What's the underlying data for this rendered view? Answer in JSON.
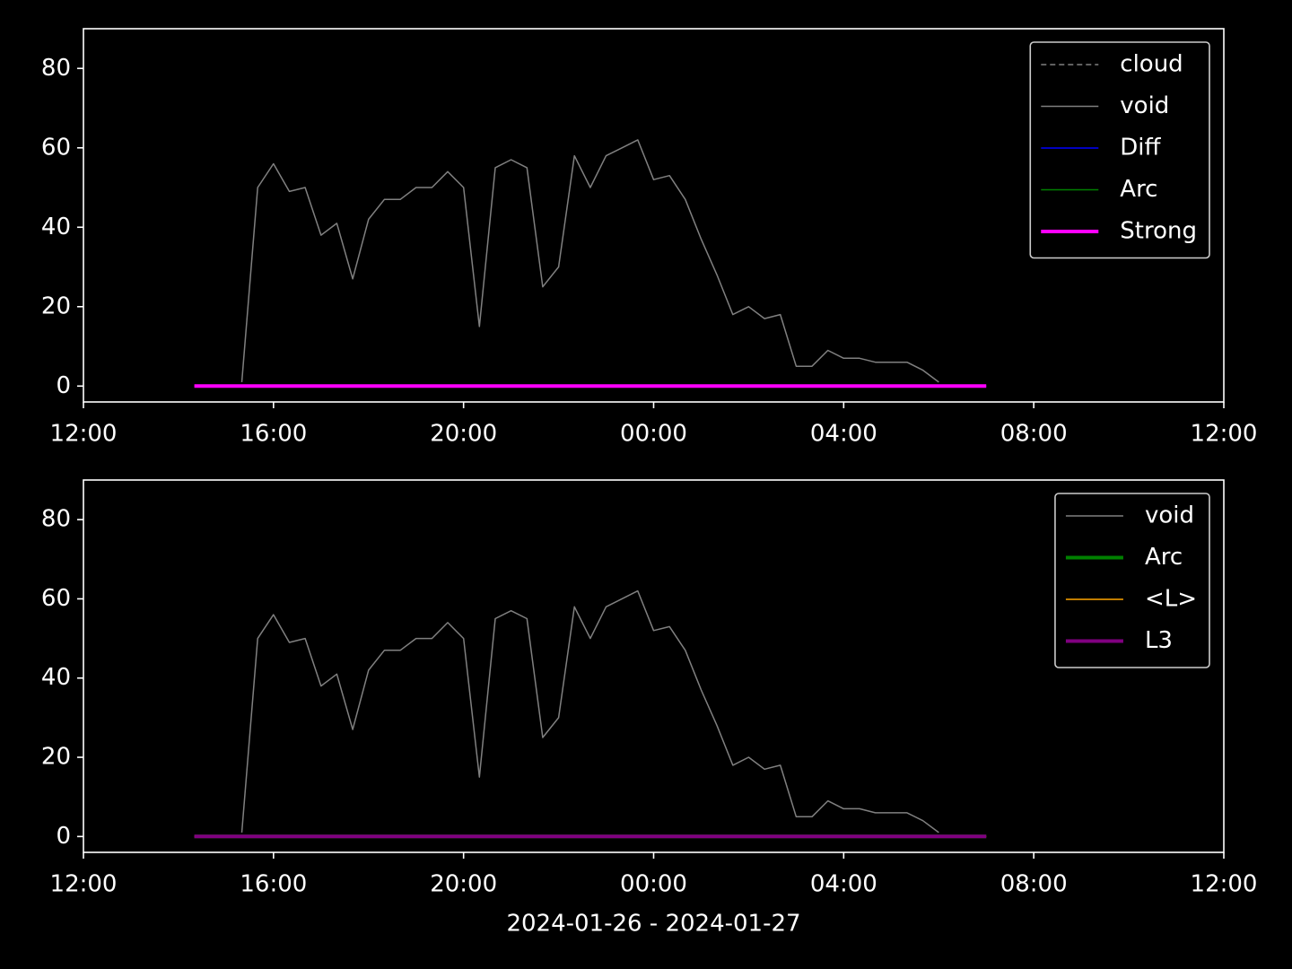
{
  "chart_data": [
    {
      "type": "line",
      "x": [
        140,
        160,
        180,
        200,
        220,
        240,
        260,
        280,
        300,
        320,
        340,
        360,
        380,
        400,
        420,
        440,
        460,
        480,
        500,
        520,
        540,
        560,
        580,
        600,
        620,
        640,
        660,
        680,
        700,
        720,
        740,
        760,
        780,
        800,
        820,
        840,
        860,
        880,
        900,
        920,
        940,
        960,
        980,
        1000,
        1020,
        1040,
        1060,
        1080,
        1100,
        1120,
        1140
      ],
      "series": [
        {
          "name": "cloud",
          "color": "#808080",
          "linewidth": 1.5,
          "linestyle": "dashed",
          "values": [
            0,
            0,
            0,
            0,
            0,
            0,
            0,
            0,
            0,
            0,
            0,
            0,
            0,
            0,
            0,
            0,
            0,
            0,
            0,
            0,
            0,
            0,
            0,
            0,
            0,
            0,
            0,
            0,
            0,
            0,
            0,
            0,
            0,
            0,
            0,
            0,
            0,
            0,
            0,
            0,
            0,
            0,
            0,
            0,
            0,
            0,
            0,
            0,
            0,
            0,
            0
          ]
        },
        {
          "name": "void",
          "color": "#808080",
          "linewidth": 1.5,
          "linestyle": "solid",
          "values": [
            null,
            null,
            null,
            1,
            50,
            56,
            49,
            50,
            38,
            41,
            27,
            42,
            47,
            47,
            50,
            50,
            54,
            50,
            15,
            55,
            57,
            55,
            25,
            30,
            58,
            50,
            58,
            60,
            62,
            52,
            53,
            47,
            37,
            28,
            18,
            20,
            17,
            18,
            5,
            5,
            9,
            7,
            7,
            6,
            6,
            6,
            4,
            1,
            null,
            null,
            null
          ]
        },
        {
          "name": "Diff",
          "color": "#0000ff",
          "linewidth": 1.5,
          "linestyle": "solid",
          "values": [
            0,
            0,
            0,
            0,
            0,
            0,
            0,
            0,
            0,
            0,
            0,
            0,
            0,
            0,
            0,
            0,
            0,
            0,
            0,
            0,
            0,
            0,
            0,
            0,
            0,
            0,
            0,
            0,
            0,
            0,
            0,
            0,
            0,
            0,
            0,
            0,
            0,
            0,
            0,
            0,
            0,
            0,
            0,
            0,
            0,
            0,
            0,
            0,
            0,
            0,
            0
          ]
        },
        {
          "name": "Arc",
          "color": "#008000",
          "linewidth": 1.5,
          "linestyle": "solid",
          "values": [
            0,
            0,
            0,
            0,
            0,
            0,
            0,
            0,
            0,
            0,
            0,
            0,
            0,
            0,
            0,
            0,
            0,
            0,
            0,
            0,
            0,
            0,
            0,
            0,
            0,
            0,
            0,
            0,
            0,
            0,
            0,
            0,
            0,
            0,
            0,
            0,
            0,
            0,
            0,
            0,
            0,
            0,
            0,
            0,
            0,
            0,
            0,
            0,
            0,
            0,
            0
          ]
        },
        {
          "name": "Strong",
          "color": "#ff00ff",
          "linewidth": 4,
          "linestyle": "solid",
          "values": [
            0,
            0,
            0,
            0,
            0,
            0,
            0,
            0,
            0,
            0,
            0,
            0,
            0,
            0,
            0,
            0,
            0,
            0,
            0,
            0,
            0,
            0,
            0,
            0,
            0,
            0,
            0,
            0,
            0,
            0,
            0,
            0,
            0,
            0,
            0,
            0,
            0,
            0,
            0,
            0,
            0,
            0,
            0,
            0,
            0,
            0,
            0,
            0,
            0,
            0,
            0
          ]
        }
      ],
      "xlim": [
        0,
        1440
      ],
      "xticks": [
        {
          "value": 0,
          "label": "12:00"
        },
        {
          "value": 240,
          "label": "16:00"
        },
        {
          "value": 480,
          "label": "20:00"
        },
        {
          "value": 720,
          "label": "00:00"
        },
        {
          "value": 960,
          "label": "04:00"
        },
        {
          "value": 1200,
          "label": "08:00"
        },
        {
          "value": 1440,
          "label": "12:00"
        }
      ],
      "ylim": [
        -4,
        90
      ],
      "yticks": [
        0,
        20,
        40,
        60,
        80
      ],
      "legend": "upper right"
    },
    {
      "type": "line",
      "x": [
        140,
        160,
        180,
        200,
        220,
        240,
        260,
        280,
        300,
        320,
        340,
        360,
        380,
        400,
        420,
        440,
        460,
        480,
        500,
        520,
        540,
        560,
        580,
        600,
        620,
        640,
        660,
        680,
        700,
        720,
        740,
        760,
        780,
        800,
        820,
        840,
        860,
        880,
        900,
        920,
        940,
        960,
        980,
        1000,
        1020,
        1040,
        1060,
        1080,
        1100,
        1120,
        1140
      ],
      "series": [
        {
          "name": "void",
          "color": "#808080",
          "linewidth": 1.5,
          "linestyle": "solid",
          "values": [
            null,
            null,
            null,
            1,
            50,
            56,
            49,
            50,
            38,
            41,
            27,
            42,
            47,
            47,
            50,
            50,
            54,
            50,
            15,
            55,
            57,
            55,
            25,
            30,
            58,
            50,
            58,
            60,
            62,
            52,
            53,
            47,
            37,
            28,
            18,
            20,
            17,
            18,
            5,
            5,
            9,
            7,
            7,
            6,
            6,
            6,
            4,
            1,
            null,
            null,
            null
          ]
        },
        {
          "name": "Arc",
          "color": "#008000",
          "linewidth": 4,
          "linestyle": "solid",
          "values": [
            0,
            0,
            0,
            0,
            0,
            0,
            0,
            0,
            0,
            0,
            0,
            0,
            0,
            0,
            0,
            0,
            0,
            0,
            0,
            0,
            0,
            0,
            0,
            0,
            0,
            0,
            0,
            0,
            0,
            0,
            0,
            0,
            0,
            0,
            0,
            0,
            0,
            0,
            0,
            0,
            0,
            0,
            0,
            0,
            0,
            0,
            0,
            0,
            0,
            0,
            0
          ]
        },
        {
          "name": "<L>",
          "color": "#ffa500",
          "linewidth": 1.5,
          "linestyle": "solid",
          "values": [
            0,
            0,
            0,
            0,
            0,
            0,
            0,
            0,
            0,
            0,
            0,
            0,
            0,
            0,
            0,
            0,
            0,
            0,
            0,
            0,
            0,
            0,
            0,
            0,
            0,
            0,
            0,
            0,
            0,
            0,
            0,
            0,
            0,
            0,
            0,
            0,
            0,
            0,
            0,
            0,
            0,
            0,
            0,
            0,
            0,
            0,
            0,
            0,
            0,
            0,
            0
          ]
        },
        {
          "name": "L3",
          "color": "#800080",
          "linewidth": 4,
          "linestyle": "solid",
          "values": [
            0,
            0,
            0,
            0,
            0,
            0,
            0,
            0,
            0,
            0,
            0,
            0,
            0,
            0,
            0,
            0,
            0,
            0,
            0,
            0,
            0,
            0,
            0,
            0,
            0,
            0,
            0,
            0,
            0,
            0,
            0,
            0,
            0,
            0,
            0,
            0,
            0,
            0,
            0,
            0,
            0,
            0,
            0,
            0,
            0,
            0,
            0,
            0,
            0,
            0,
            0
          ]
        }
      ],
      "xlim": [
        0,
        1440
      ],
      "xticks": [
        {
          "value": 0,
          "label": "12:00"
        },
        {
          "value": 240,
          "label": "16:00"
        },
        {
          "value": 480,
          "label": "20:00"
        },
        {
          "value": 720,
          "label": "00:00"
        },
        {
          "value": 960,
          "label": "04:00"
        },
        {
          "value": 1200,
          "label": "08:00"
        },
        {
          "value": 1440,
          "label": "12:00"
        }
      ],
      "ylim": [
        -4,
        90
      ],
      "yticks": [
        0,
        20,
        40,
        60,
        80
      ],
      "legend": "upper right",
      "xlabel": "2024-01-26 - 2024-01-27"
    }
  ]
}
